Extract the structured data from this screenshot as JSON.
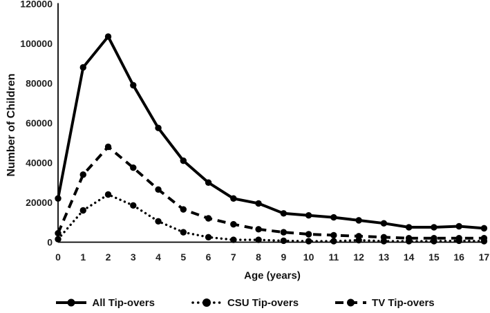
{
  "chart_data": {
    "type": "line",
    "title": "",
    "xlabel": "Age (years)",
    "ylabel": "Number of Children",
    "x": [
      0,
      1,
      2,
      3,
      4,
      5,
      6,
      7,
      8,
      9,
      10,
      11,
      12,
      13,
      14,
      15,
      16,
      17
    ],
    "y_ticks": [
      0,
      20000,
      40000,
      60000,
      80000,
      100000,
      120000
    ],
    "ylim": [
      0,
      120000
    ],
    "grid": false,
    "legend_position": "bottom",
    "line_color": "#000000",
    "series": [
      {
        "name": "All Tip-overs",
        "style": "solid",
        "values": [
          22000,
          88000,
          103500,
          79000,
          57500,
          41000,
          30000,
          22000,
          19500,
          14500,
          13500,
          12500,
          11000,
          9500,
          7500,
          7500,
          8000,
          7000
        ]
      },
      {
        "name": "CSU Tip-overs",
        "style": "dotted",
        "values": [
          1500,
          16000,
          24000,
          18500,
          10500,
          5000,
          2500,
          1200,
          1200,
          700,
          500,
          500,
          1000,
          500,
          500,
          500,
          700,
          500
        ]
      },
      {
        "name": "TV Tip-overs",
        "style": "dashed",
        "values": [
          4500,
          34000,
          48000,
          37500,
          26500,
          16500,
          12000,
          9000,
          6500,
          5000,
          4000,
          3500,
          3000,
          2500,
          2000,
          2000,
          2000,
          2000
        ]
      }
    ]
  }
}
